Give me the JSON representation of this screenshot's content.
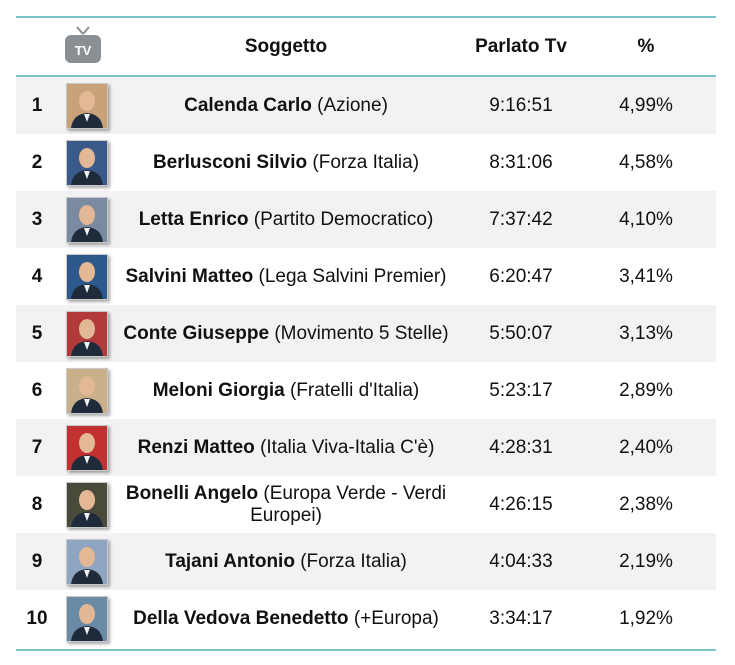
{
  "header": {
    "tv_icon_label": "TV",
    "subject": "Soggetto",
    "time": "Parlato Tv",
    "percent": "%"
  },
  "rows": [
    {
      "rank": "1",
      "name": "Calenda Carlo",
      "party": "(Azione)",
      "time": "9:16:51",
      "percent": "4,99%",
      "photo_bg": "#c9a27a"
    },
    {
      "rank": "2",
      "name": "Berlusconi Silvio",
      "party": "(Forza Italia)",
      "time": "8:31:06",
      "percent": "4,58%",
      "photo_bg": "#3a5a8c"
    },
    {
      "rank": "3",
      "name": "Letta Enrico",
      "party": "(Partito Democratico)",
      "time": "7:37:42",
      "percent": "4,10%",
      "photo_bg": "#7a8aa0"
    },
    {
      "rank": "4",
      "name": "Salvini Matteo",
      "party": "(Lega Salvini Premier)",
      "time": "6:20:47",
      "percent": "3,41%",
      "photo_bg": "#2d5a8a"
    },
    {
      "rank": "5",
      "name": "Conte Giuseppe",
      "party": "(Movimento 5 Stelle)",
      "time": "5:50:07",
      "percent": "3,13%",
      "photo_bg": "#b23a3a"
    },
    {
      "rank": "6",
      "name": "Meloni Giorgia",
      "party": "(Fratelli d'Italia)",
      "time": "5:23:17",
      "percent": "2,89%",
      "photo_bg": "#c8b08a"
    },
    {
      "rank": "7",
      "name": "Renzi Matteo",
      "party": "(Italia Viva-Italia C'è)",
      "time": "4:28:31",
      "percent": "2,40%",
      "photo_bg": "#c23030"
    },
    {
      "rank": "8",
      "name": "Bonelli Angelo",
      "party": "(Europa Verde - Verdi Europei)",
      "time": "4:26:15",
      "percent": "2,38%",
      "photo_bg": "#4a4a3a"
    },
    {
      "rank": "9",
      "name": "Tajani Antonio",
      "party": "(Forza Italia)",
      "time": "4:04:33",
      "percent": "2,19%",
      "photo_bg": "#8fa6c2"
    },
    {
      "rank": "10",
      "name": "Della Vedova Benedetto",
      "party": "(+Europa)",
      "time": "3:34:17",
      "percent": "1,92%",
      "photo_bg": "#6a8aa6"
    }
  ]
}
